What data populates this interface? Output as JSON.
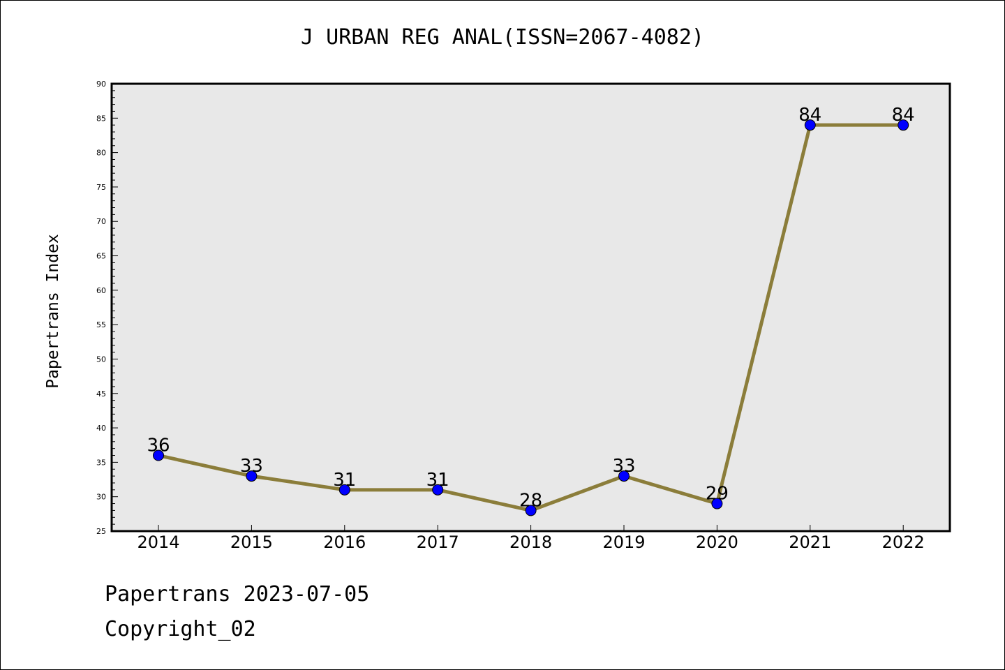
{
  "chart_data": {
    "type": "line",
    "title": "J URBAN REG ANAL(ISSN=2067-4082)",
    "xlabel": "",
    "ylabel": "Papertrans Index",
    "categories": [
      "2014",
      "2015",
      "2016",
      "2017",
      "2018",
      "2019",
      "2020",
      "2021",
      "2022"
    ],
    "series": [
      {
        "values": [
          36,
          33,
          31,
          31,
          28,
          33,
          29,
          84,
          84
        ]
      }
    ],
    "data_labels": [
      "36",
      "33",
      "31",
      "31",
      "28",
      "33",
      "29",
      "84",
      "84"
    ],
    "ylim": [
      25,
      90
    ],
    "yticks": [
      25,
      30,
      35,
      40,
      45,
      50,
      55,
      60,
      65,
      70,
      75,
      80,
      85,
      90
    ],
    "ytick_labels": [
      "25",
      "30",
      "35",
      "40",
      "45",
      "50",
      "55",
      "60",
      "65",
      "70",
      "75",
      "80",
      "85",
      "90"
    ],
    "grid": false,
    "colors": {
      "line": "#8B7D3A",
      "marker": "#0000FF",
      "plot_background": "#E8E8E8"
    }
  },
  "footer": {
    "line1": "Papertrans 2023-07-05",
    "line2": "Copyright_02"
  }
}
